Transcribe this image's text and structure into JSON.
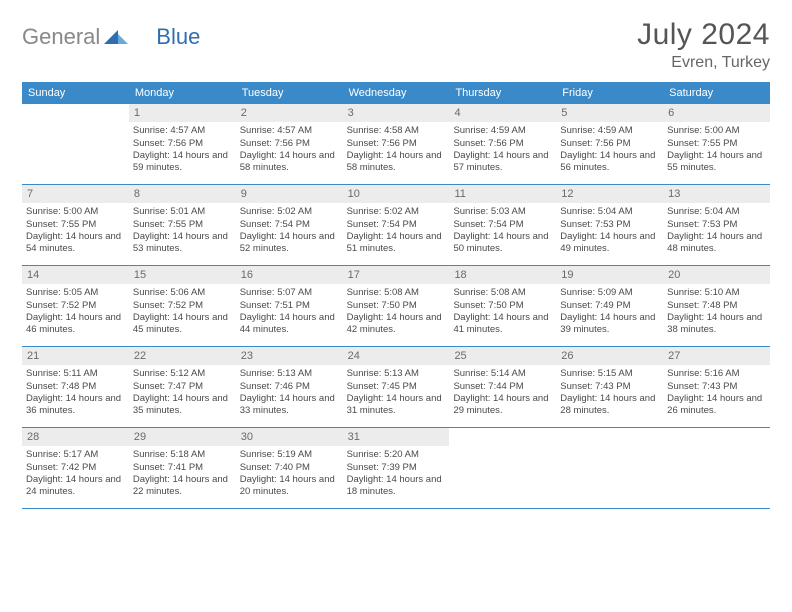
{
  "brand": {
    "word1": "General",
    "word2": "Blue"
  },
  "title": {
    "month": "July 2024",
    "location": "Evren, Turkey"
  },
  "colors": {
    "header_bg": "#3a8ac9",
    "daynum_bg": "#ececec",
    "rule": "#3a8ac9",
    "text": "#4a4a4a",
    "logo_gray": "#888888",
    "logo_blue": "#2e6fb0"
  },
  "day_names": [
    "Sunday",
    "Monday",
    "Tuesday",
    "Wednesday",
    "Thursday",
    "Friday",
    "Saturday"
  ],
  "weeks": [
    [
      {
        "n": "",
        "empty": true
      },
      {
        "n": "1",
        "sr": "4:57 AM",
        "ss": "7:56 PM",
        "dl": "14 hours and 59 minutes."
      },
      {
        "n": "2",
        "sr": "4:57 AM",
        "ss": "7:56 PM",
        "dl": "14 hours and 58 minutes."
      },
      {
        "n": "3",
        "sr": "4:58 AM",
        "ss": "7:56 PM",
        "dl": "14 hours and 58 minutes."
      },
      {
        "n": "4",
        "sr": "4:59 AM",
        "ss": "7:56 PM",
        "dl": "14 hours and 57 minutes."
      },
      {
        "n": "5",
        "sr": "4:59 AM",
        "ss": "7:56 PM",
        "dl": "14 hours and 56 minutes."
      },
      {
        "n": "6",
        "sr": "5:00 AM",
        "ss": "7:55 PM",
        "dl": "14 hours and 55 minutes."
      }
    ],
    [
      {
        "n": "7",
        "sr": "5:00 AM",
        "ss": "7:55 PM",
        "dl": "14 hours and 54 minutes."
      },
      {
        "n": "8",
        "sr": "5:01 AM",
        "ss": "7:55 PM",
        "dl": "14 hours and 53 minutes."
      },
      {
        "n": "9",
        "sr": "5:02 AM",
        "ss": "7:54 PM",
        "dl": "14 hours and 52 minutes."
      },
      {
        "n": "10",
        "sr": "5:02 AM",
        "ss": "7:54 PM",
        "dl": "14 hours and 51 minutes."
      },
      {
        "n": "11",
        "sr": "5:03 AM",
        "ss": "7:54 PM",
        "dl": "14 hours and 50 minutes."
      },
      {
        "n": "12",
        "sr": "5:04 AM",
        "ss": "7:53 PM",
        "dl": "14 hours and 49 minutes."
      },
      {
        "n": "13",
        "sr": "5:04 AM",
        "ss": "7:53 PM",
        "dl": "14 hours and 48 minutes."
      }
    ],
    [
      {
        "n": "14",
        "sr": "5:05 AM",
        "ss": "7:52 PM",
        "dl": "14 hours and 46 minutes."
      },
      {
        "n": "15",
        "sr": "5:06 AM",
        "ss": "7:52 PM",
        "dl": "14 hours and 45 minutes."
      },
      {
        "n": "16",
        "sr": "5:07 AM",
        "ss": "7:51 PM",
        "dl": "14 hours and 44 minutes."
      },
      {
        "n": "17",
        "sr": "5:08 AM",
        "ss": "7:50 PM",
        "dl": "14 hours and 42 minutes."
      },
      {
        "n": "18",
        "sr": "5:08 AM",
        "ss": "7:50 PM",
        "dl": "14 hours and 41 minutes."
      },
      {
        "n": "19",
        "sr": "5:09 AM",
        "ss": "7:49 PM",
        "dl": "14 hours and 39 minutes."
      },
      {
        "n": "20",
        "sr": "5:10 AM",
        "ss": "7:48 PM",
        "dl": "14 hours and 38 minutes."
      }
    ],
    [
      {
        "n": "21",
        "sr": "5:11 AM",
        "ss": "7:48 PM",
        "dl": "14 hours and 36 minutes."
      },
      {
        "n": "22",
        "sr": "5:12 AM",
        "ss": "7:47 PM",
        "dl": "14 hours and 35 minutes."
      },
      {
        "n": "23",
        "sr": "5:13 AM",
        "ss": "7:46 PM",
        "dl": "14 hours and 33 minutes."
      },
      {
        "n": "24",
        "sr": "5:13 AM",
        "ss": "7:45 PM",
        "dl": "14 hours and 31 minutes."
      },
      {
        "n": "25",
        "sr": "5:14 AM",
        "ss": "7:44 PM",
        "dl": "14 hours and 29 minutes."
      },
      {
        "n": "26",
        "sr": "5:15 AM",
        "ss": "7:43 PM",
        "dl": "14 hours and 28 minutes."
      },
      {
        "n": "27",
        "sr": "5:16 AM",
        "ss": "7:43 PM",
        "dl": "14 hours and 26 minutes."
      }
    ],
    [
      {
        "n": "28",
        "sr": "5:17 AM",
        "ss": "7:42 PM",
        "dl": "14 hours and 24 minutes."
      },
      {
        "n": "29",
        "sr": "5:18 AM",
        "ss": "7:41 PM",
        "dl": "14 hours and 22 minutes."
      },
      {
        "n": "30",
        "sr": "5:19 AM",
        "ss": "7:40 PM",
        "dl": "14 hours and 20 minutes."
      },
      {
        "n": "31",
        "sr": "5:20 AM",
        "ss": "7:39 PM",
        "dl": "14 hours and 18 minutes."
      },
      {
        "n": "",
        "empty": true
      },
      {
        "n": "",
        "empty": true
      },
      {
        "n": "",
        "empty": true
      }
    ]
  ],
  "labels": {
    "sunrise": "Sunrise:",
    "sunset": "Sunset:",
    "daylight": "Daylight:"
  }
}
